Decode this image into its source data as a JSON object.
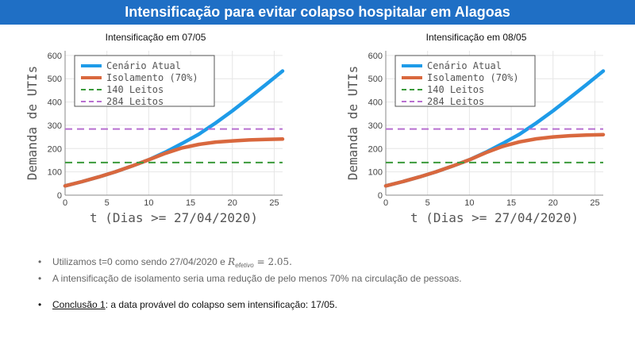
{
  "header": {
    "title": "Intensificação para evitar colapso hospitalar em Alagoas"
  },
  "chart_data": [
    {
      "type": "line",
      "title": "Intensificação em 07/05",
      "xlabel": "t (Dias >= 27/04/2020)",
      "ylabel": "Demanda de UTIs",
      "xlim": [
        0,
        26
      ],
      "ylim": [
        0,
        620
      ],
      "xticks": [
        0,
        5,
        10,
        15,
        20,
        25
      ],
      "yticks": [
        0,
        100,
        200,
        300,
        400,
        500,
        600
      ],
      "legend_position": "top-left",
      "series": [
        {
          "name": "Cenário Atual",
          "color": "#1e9be8",
          "style": "solid",
          "x": [
            0,
            2,
            4,
            6,
            8,
            10,
            12,
            14,
            16,
            18,
            20,
            22,
            24,
            26
          ],
          "y": [
            40,
            58,
            78,
            100,
            125,
            152,
            185,
            222,
            262,
            310,
            362,
            418,
            475,
            533
          ]
        },
        {
          "name": "Isolamento (70%)",
          "color": "#d9683e",
          "style": "solid",
          "x": [
            0,
            2,
            4,
            6,
            8,
            10,
            12,
            14,
            16,
            18,
            20,
            22,
            24,
            26
          ],
          "y": [
            40,
            58,
            78,
            100,
            125,
            152,
            180,
            203,
            218,
            228,
            233,
            237,
            239,
            241
          ]
        },
        {
          "name": "140 Leitos",
          "color": "#3a9a3a",
          "style": "dashed",
          "x": [
            0,
            26
          ],
          "y": [
            140,
            140
          ]
        },
        {
          "name": "284 Leitos",
          "color": "#b86fd0",
          "style": "dashed",
          "x": [
            0,
            26
          ],
          "y": [
            284,
            284
          ]
        }
      ]
    },
    {
      "type": "line",
      "title": "Intensificação em 08/05",
      "xlabel": "t (Dias >= 27/04/2020)",
      "ylabel": "Demanda de UTIs",
      "xlim": [
        0,
        26
      ],
      "ylim": [
        0,
        620
      ],
      "xticks": [
        0,
        5,
        10,
        15,
        20,
        25
      ],
      "yticks": [
        0,
        100,
        200,
        300,
        400,
        500,
        600
      ],
      "legend_position": "top-left",
      "series": [
        {
          "name": "Cenário Atual",
          "color": "#1e9be8",
          "style": "solid",
          "x": [
            0,
            2,
            4,
            6,
            8,
            10,
            12,
            14,
            16,
            18,
            20,
            22,
            24,
            26
          ],
          "y": [
            40,
            58,
            78,
            100,
            125,
            152,
            185,
            222,
            262,
            310,
            362,
            418,
            475,
            533
          ]
        },
        {
          "name": "Isolamento (70%)",
          "color": "#d9683e",
          "style": "solid",
          "x": [
            0,
            2,
            4,
            6,
            8,
            10,
            12,
            14,
            16,
            18,
            20,
            22,
            24,
            26
          ],
          "y": [
            40,
            58,
            78,
            100,
            125,
            152,
            183,
            210,
            229,
            242,
            250,
            255,
            258,
            260
          ]
        },
        {
          "name": "140 Leitos",
          "color": "#3a9a3a",
          "style": "dashed",
          "x": [
            0,
            26
          ],
          "y": [
            140,
            140
          ]
        },
        {
          "name": "284 Leitos",
          "color": "#b86fd0",
          "style": "dashed",
          "x": [
            0,
            26
          ],
          "y": [
            284,
            284
          ]
        }
      ]
    }
  ],
  "notes": {
    "bullet1_prefix": "Utilizamos t=0 como sendo 27/04/2020  e ",
    "bullet1_math_symbol": "R",
    "bullet1_math_sub": "efetivo",
    "bullet1_math_value": " = 2.05.",
    "bullet2": "A intensificação de isolamento seria uma redução de pelo menos 70% na circulação de pessoas.",
    "conclusion_label": "Conclusão 1",
    "conclusion_text": ": a data provável do colapso sem intensificação: 17/05."
  }
}
